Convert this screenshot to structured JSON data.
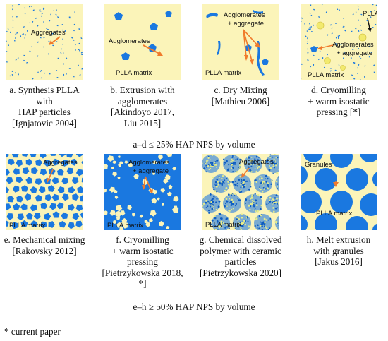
{
  "row1": {
    "panels": [
      {
        "labels": [
          "Aggregates"
        ],
        "caption": [
          "a. Synthesis PLLA",
          "with",
          "HAP particles",
          "[Ignjatovic 2004]"
        ]
      },
      {
        "labels": [
          "Agglomerates",
          "PLLA matrix"
        ],
        "caption": [
          "b. Extrusion with",
          "agglomerates",
          "[Akindoyo 2017,",
          "Liu 2015]"
        ]
      },
      {
        "labels": [
          "Agglomerates",
          "+ aggregate",
          "PLLA matrix"
        ],
        "caption": [
          "c. Dry Mixing",
          "[Mathieu 2006]"
        ]
      },
      {
        "labels": [
          "PLLA",
          "Agglomerates",
          "+ aggregate",
          "PLLA matrix"
        ],
        "caption": [
          "d. Cryomilling",
          "+ warm isostatic",
          "pressing [*]"
        ]
      }
    ],
    "summary": "a–d ≤ 25% HAP NPS by volume"
  },
  "row2": {
    "panels": [
      {
        "labels": [
          "Aggregates",
          "PLLA matrix"
        ],
        "caption": [
          "e. Mechanical mixing",
          "[Rakovsky 2012]"
        ]
      },
      {
        "labels": [
          "Agglomerates",
          "+ aggregate",
          "PLLA matrix"
        ],
        "caption": [
          "f. Cryomilling",
          "+ warm isostatic",
          "pressing",
          "[Pietrzykowska 2018,",
          "*]"
        ]
      },
      {
        "labels": [
          "Aggregates",
          "PLLA matrix"
        ],
        "caption": [
          "g. Chemical dissolved",
          "polymer with ceramic",
          "particles",
          "[Pietrzykowska 2020]"
        ]
      },
      {
        "labels": [
          "Granules",
          "PLLA matrix"
        ],
        "caption": [
          "h. Melt extrusion",
          "with granules",
          "[Jakus 2016]"
        ]
      }
    ],
    "summary": "e–h ≥ 50% HAP NPS by volume"
  },
  "footnote": "* current paper",
  "colors": {
    "background": "#fbf4b9",
    "hap": "#1a78e0",
    "arrow": "#f07b2c",
    "circle": "#f2ea6e"
  }
}
